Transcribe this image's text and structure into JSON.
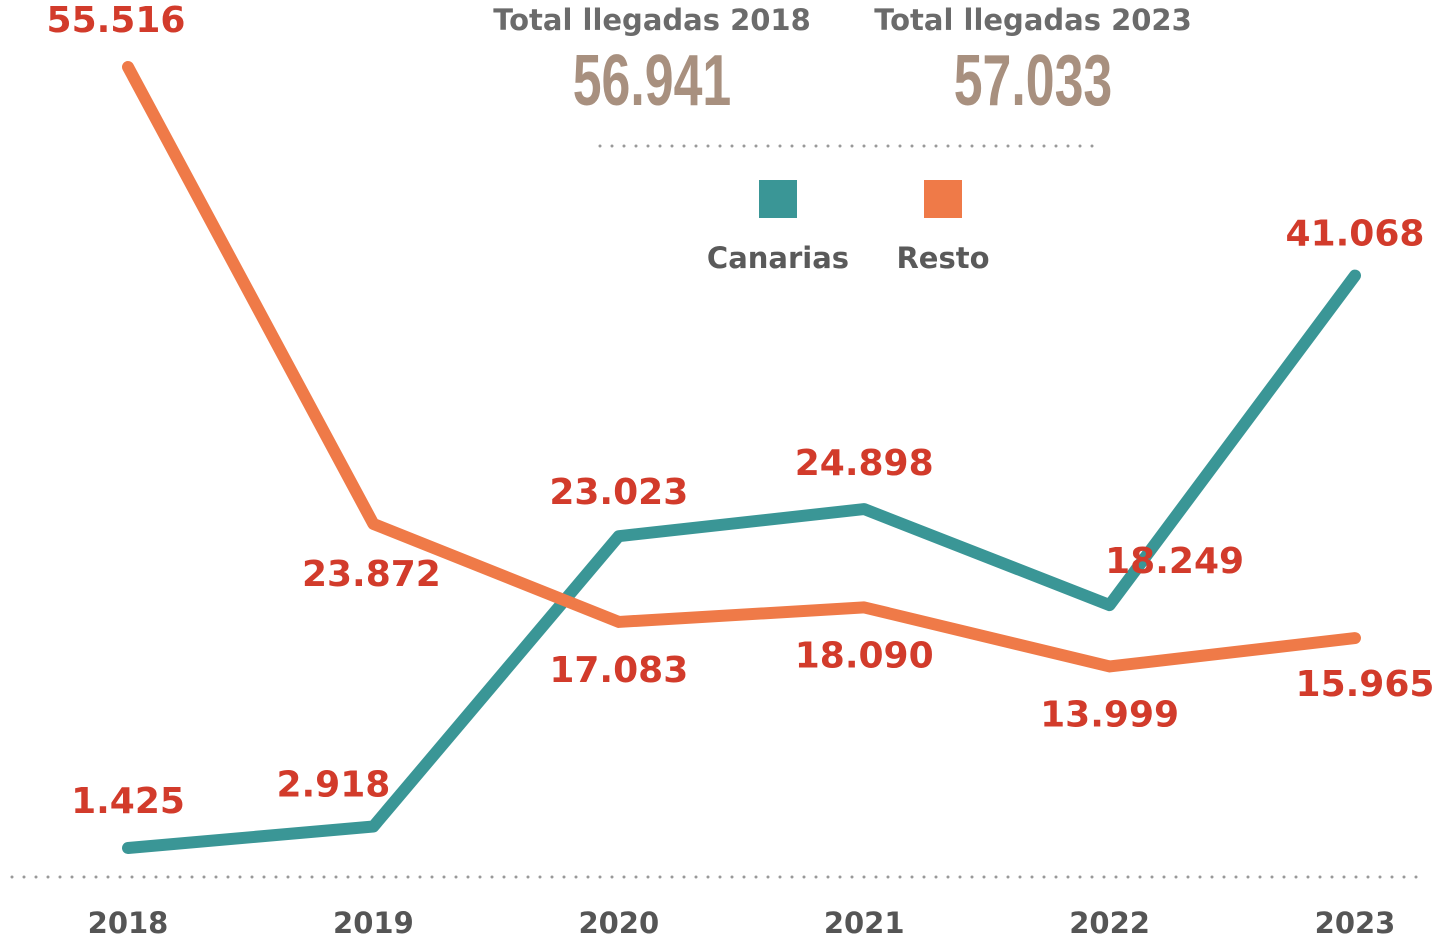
{
  "chart_data": {
    "type": "line",
    "annotations": [
      {
        "label": "Total llegadas 2018",
        "value": "56.941"
      },
      {
        "label": "Total llegadas 2023",
        "value": "57.033"
      }
    ],
    "categories": [
      "2018",
      "2019",
      "2020",
      "2021",
      "2022",
      "2023"
    ],
    "series": [
      {
        "name": "Canarias",
        "color": "#3a9696",
        "values": [
          1425,
          2918,
          23023,
          24898,
          18249,
          41068
        ],
        "value_labels": [
          "1.425",
          "2.918",
          "23.023",
          "24.898",
          "18.249",
          "41.068"
        ]
      },
      {
        "name": "Resto",
        "color": "#ef7a48",
        "values": [
          55516,
          23872,
          17083,
          18090,
          13999,
          15965
        ],
        "value_labels": [
          "55.516",
          "23.872",
          "17.083",
          "18.090",
          "13.999",
          "15.965"
        ]
      }
    ],
    "label_color": "#d23b2b"
  }
}
